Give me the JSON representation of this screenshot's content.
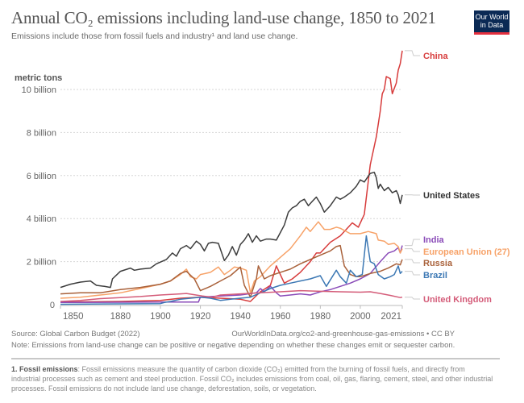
{
  "header": {
    "title": "Annual CO₂ emissions including land-use change, 1850 to 2021",
    "subtitle": "Emissions include those from fossil fuels and industry¹ and land use change.",
    "logo_line1": "Our World",
    "logo_line2": "in Data"
  },
  "footer": {
    "source": "Source: Global Carbon Budget (2022)",
    "url": "OurWorldInData.org/co2-and-greenhouse-gas-emissions • CC BY",
    "note": "Note: Emissions from land-use change can be positive or negative depending on whether these changes emit or sequester carbon.",
    "footnote_label": "1. Fossil emissions",
    "footnote_text": ": Fossil emissions measure the quantity of carbon dioxide (CO₂) emitted from the burning of fossil fuels, and directly from industrial processes such as cement and steel production. Fossil CO₂ includes emissions from coal, oil, gas, flaring, cement, steel, and other industrial processes. Fossil emissions do not include land use change, deforestation, soils, or vegetation."
  },
  "chart_data": {
    "type": "line",
    "title": "Annual CO₂ emissions including land-use change, 1850 to 2021",
    "ylabel": "metric tons",
    "xlabel": "",
    "xlim": [
      1850,
      2021
    ],
    "ylim": [
      0,
      10000000000
    ],
    "grid": true,
    "legend": "right (line-end labels)",
    "x_ticks": [
      1850,
      1880,
      1900,
      1920,
      1940,
      1960,
      1980,
      2000,
      2021
    ],
    "y_ticks": [
      {
        "value": 0,
        "label": "0"
      },
      {
        "value": 2000000000,
        "label": "2 billion"
      },
      {
        "value": 4000000000,
        "label": "4 billion"
      },
      {
        "value": 6000000000,
        "label": "6 billion"
      },
      {
        "value": 8000000000,
        "label": "8 billion"
      },
      {
        "value": 10000000000,
        "label": "10 billion"
      }
    ],
    "unit_note": "values in billions of metric tons",
    "series": [
      {
        "name": "China",
        "color": "#d73c3c",
        "points": [
          [
            1850,
            0.12
          ],
          [
            1880,
            0.15
          ],
          [
            1900,
            0.2
          ],
          [
            1910,
            0.3
          ],
          [
            1920,
            0.35
          ],
          [
            1930,
            0.3
          ],
          [
            1940,
            0.25
          ],
          [
            1945,
            0.15
          ],
          [
            1950,
            0.6
          ],
          [
            1955,
            0.9
          ],
          [
            1958,
            1.8
          ],
          [
            1960,
            1.4
          ],
          [
            1962,
            1.0
          ],
          [
            1966,
            1.2
          ],
          [
            1970,
            1.5
          ],
          [
            1975,
            2.0
          ],
          [
            1978,
            2.4
          ],
          [
            1980,
            2.4
          ],
          [
            1985,
            2.9
          ],
          [
            1990,
            3.2
          ],
          [
            1996,
            3.8
          ],
          [
            1999,
            3.6
          ],
          [
            2002,
            4.2
          ],
          [
            2005,
            6.5
          ],
          [
            2008,
            7.8
          ],
          [
            2010,
            9.0
          ],
          [
            2011,
            9.8
          ],
          [
            2012,
            10.0
          ],
          [
            2013,
            10.6
          ],
          [
            2015,
            10.5
          ],
          [
            2016,
            9.8
          ],
          [
            2018,
            10.3
          ],
          [
            2019,
            10.9
          ],
          [
            2020,
            11.2
          ],
          [
            2021,
            11.8
          ]
        ]
      },
      {
        "name": "United States",
        "color": "#3d3d3d",
        "points": [
          [
            1850,
            0.8
          ],
          [
            1855,
            0.95
          ],
          [
            1860,
            1.05
          ],
          [
            1865,
            1.1
          ],
          [
            1868,
            0.9
          ],
          [
            1872,
            0.85
          ],
          [
            1875,
            0.8
          ],
          [
            1876,
            1.2
          ],
          [
            1880,
            1.55
          ],
          [
            1885,
            1.7
          ],
          [
            1887,
            1.6
          ],
          [
            1890,
            1.65
          ],
          [
            1895,
            1.7
          ],
          [
            1898,
            1.9
          ],
          [
            1903,
            2.1
          ],
          [
            1906,
            2.4
          ],
          [
            1908,
            2.25
          ],
          [
            1910,
            2.6
          ],
          [
            1913,
            2.75
          ],
          [
            1915,
            2.6
          ],
          [
            1918,
            2.95
          ],
          [
            1920,
            2.8
          ],
          [
            1922,
            2.5
          ],
          [
            1924,
            2.85
          ],
          [
            1926,
            2.9
          ],
          [
            1929,
            2.85
          ],
          [
            1932,
            2.05
          ],
          [
            1934,
            2.3
          ],
          [
            1936,
            2.7
          ],
          [
            1938,
            2.3
          ],
          [
            1940,
            2.8
          ],
          [
            1942,
            3.0
          ],
          [
            1944,
            3.3
          ],
          [
            1946,
            2.9
          ],
          [
            1948,
            3.2
          ],
          [
            1950,
            2.95
          ],
          [
            1953,
            3.05
          ],
          [
            1955,
            3.05
          ],
          [
            1958,
            3.0
          ],
          [
            1960,
            3.35
          ],
          [
            1962,
            3.7
          ],
          [
            1964,
            4.3
          ],
          [
            1966,
            4.5
          ],
          [
            1968,
            4.6
          ],
          [
            1970,
            4.8
          ],
          [
            1972,
            4.9
          ],
          [
            1974,
            4.6
          ],
          [
            1976,
            4.8
          ],
          [
            1978,
            5.0
          ],
          [
            1980,
            4.7
          ],
          [
            1982,
            4.3
          ],
          [
            1985,
            4.6
          ],
          [
            1988,
            5.0
          ],
          [
            1990,
            4.9
          ],
          [
            1992,
            5.0
          ],
          [
            1995,
            5.2
          ],
          [
            1998,
            5.5
          ],
          [
            2000,
            5.8
          ],
          [
            2002,
            5.7
          ],
          [
            2005,
            6.1
          ],
          [
            2007,
            6.15
          ],
          [
            2008,
            5.9
          ],
          [
            2009,
            5.4
          ],
          [
            2010,
            5.6
          ],
          [
            2012,
            5.3
          ],
          [
            2014,
            5.45
          ],
          [
            2016,
            5.2
          ],
          [
            2018,
            5.3
          ],
          [
            2019,
            5.1
          ],
          [
            2020,
            4.7
          ],
          [
            2021,
            5.1
          ]
        ]
      },
      {
        "name": "India",
        "color": "#8a4bb8",
        "points": [
          [
            1850,
            0.1
          ],
          [
            1900,
            0.12
          ],
          [
            1919,
            0.12
          ],
          [
            1920,
            0.35
          ],
          [
            1930,
            0.4
          ],
          [
            1940,
            0.45
          ],
          [
            1948,
            0.55
          ],
          [
            1950,
            0.75
          ],
          [
            1952,
            0.6
          ],
          [
            1955,
            0.85
          ],
          [
            1958,
            0.55
          ],
          [
            1960,
            0.4
          ],
          [
            1965,
            0.45
          ],
          [
            1970,
            0.5
          ],
          [
            1975,
            0.45
          ],
          [
            1980,
            0.6
          ],
          [
            1985,
            0.7
          ],
          [
            1990,
            0.85
          ],
          [
            1995,
            1.0
          ],
          [
            2000,
            1.2
          ],
          [
            2005,
            1.45
          ],
          [
            2010,
            2.0
          ],
          [
            2014,
            2.4
          ],
          [
            2017,
            2.5
          ],
          [
            2019,
            2.65
          ],
          [
            2020,
            2.4
          ],
          [
            2021,
            2.75
          ]
        ]
      },
      {
        "name": "European Union (27)",
        "color": "#f7a268",
        "points": [
          [
            1850,
            0.3
          ],
          [
            1860,
            0.35
          ],
          [
            1870,
            0.45
          ],
          [
            1880,
            0.55
          ],
          [
            1890,
            0.75
          ],
          [
            1900,
            0.95
          ],
          [
            1905,
            1.1
          ],
          [
            1910,
            1.4
          ],
          [
            1913,
            1.65
          ],
          [
            1915,
            1.3
          ],
          [
            1918,
            1.2
          ],
          [
            1920,
            1.4
          ],
          [
            1925,
            1.5
          ],
          [
            1929,
            1.75
          ],
          [
            1932,
            1.4
          ],
          [
            1935,
            1.6
          ],
          [
            1937,
            1.75
          ],
          [
            1940,
            1.7
          ],
          [
            1943,
            1.6
          ],
          [
            1945,
            0.55
          ],
          [
            1947,
            1.1
          ],
          [
            1950,
            1.3
          ],
          [
            1955,
            1.8
          ],
          [
            1960,
            2.2
          ],
          [
            1965,
            2.6
          ],
          [
            1970,
            3.2
          ],
          [
            1973,
            3.6
          ],
          [
            1975,
            3.4
          ],
          [
            1979,
            3.85
          ],
          [
            1982,
            3.5
          ],
          [
            1985,
            3.5
          ],
          [
            1988,
            3.6
          ],
          [
            1990,
            3.55
          ],
          [
            1995,
            3.3
          ],
          [
            2000,
            3.3
          ],
          [
            2004,
            3.4
          ],
          [
            2008,
            3.3
          ],
          [
            2009,
            3.0
          ],
          [
            2012,
            2.95
          ],
          [
            2014,
            2.8
          ],
          [
            2017,
            2.85
          ],
          [
            2019,
            2.7
          ],
          [
            2020,
            2.4
          ],
          [
            2021,
            2.6
          ]
        ]
      },
      {
        "name": "Russia",
        "color": "#a9613a",
        "points": [
          [
            1850,
            0.5
          ],
          [
            1860,
            0.55
          ],
          [
            1870,
            0.55
          ],
          [
            1880,
            0.7
          ],
          [
            1890,
            0.8
          ],
          [
            1900,
            0.95
          ],
          [
            1905,
            1.1
          ],
          [
            1910,
            1.45
          ],
          [
            1913,
            1.55
          ],
          [
            1917,
            1.2
          ],
          [
            1920,
            0.65
          ],
          [
            1925,
            0.85
          ],
          [
            1930,
            1.1
          ],
          [
            1935,
            1.35
          ],
          [
            1940,
            1.75
          ],
          [
            1942,
            0.9
          ],
          [
            1945,
            0.35
          ],
          [
            1948,
            1.2
          ],
          [
            1949,
            1.8
          ],
          [
            1952,
            1.2
          ],
          [
            1955,
            1.35
          ],
          [
            1960,
            1.5
          ],
          [
            1965,
            1.65
          ],
          [
            1970,
            1.9
          ],
          [
            1975,
            2.1
          ],
          [
            1980,
            2.3
          ],
          [
            1985,
            2.5
          ],
          [
            1988,
            2.7
          ],
          [
            1990,
            2.75
          ],
          [
            1992,
            1.8
          ],
          [
            1995,
            1.4
          ],
          [
            1998,
            1.3
          ],
          [
            2000,
            1.3
          ],
          [
            2005,
            1.45
          ],
          [
            2010,
            1.55
          ],
          [
            2014,
            1.7
          ],
          [
            2018,
            1.9
          ],
          [
            2020,
            1.85
          ],
          [
            2021,
            2.1
          ]
        ]
      },
      {
        "name": "Brazil",
        "color": "#3c78b4",
        "points": [
          [
            1850,
            0.02
          ],
          [
            1900,
            0.05
          ],
          [
            1902,
            0.1
          ],
          [
            1905,
            0.15
          ],
          [
            1910,
            0.25
          ],
          [
            1915,
            0.3
          ],
          [
            1920,
            0.35
          ],
          [
            1925,
            0.3
          ],
          [
            1930,
            0.2
          ],
          [
            1935,
            0.25
          ],
          [
            1940,
            0.3
          ],
          [
            1945,
            0.35
          ],
          [
            1950,
            0.55
          ],
          [
            1955,
            0.75
          ],
          [
            1960,
            0.9
          ],
          [
            1965,
            1.0
          ],
          [
            1970,
            1.1
          ],
          [
            1975,
            1.2
          ],
          [
            1980,
            1.35
          ],
          [
            1983,
            0.85
          ],
          [
            1985,
            1.15
          ],
          [
            1988,
            1.6
          ],
          [
            1990,
            1.3
          ],
          [
            1993,
            1.0
          ],
          [
            1995,
            1.6
          ],
          [
            1998,
            1.3
          ],
          [
            2001,
            1.4
          ],
          [
            2003,
            3.2
          ],
          [
            2005,
            2.0
          ],
          [
            2007,
            1.9
          ],
          [
            2009,
            1.4
          ],
          [
            2012,
            1.2
          ],
          [
            2015,
            1.3
          ],
          [
            2017,
            1.4
          ],
          [
            2019,
            1.8
          ],
          [
            2020,
            1.45
          ],
          [
            2021,
            1.55
          ]
        ]
      },
      {
        "name": "United Kingdom",
        "color": "#d45c79",
        "points": [
          [
            1850,
            0.15
          ],
          [
            1860,
            0.2
          ],
          [
            1870,
            0.28
          ],
          [
            1880,
            0.33
          ],
          [
            1890,
            0.38
          ],
          [
            1900,
            0.45
          ],
          [
            1910,
            0.5
          ],
          [
            1913,
            0.52
          ],
          [
            1921,
            0.4
          ],
          [
            1926,
            0.35
          ],
          [
            1930,
            0.45
          ],
          [
            1940,
            0.5
          ],
          [
            1950,
            0.55
          ],
          [
            1960,
            0.6
          ],
          [
            1970,
            0.65
          ],
          [
            1980,
            0.62
          ],
          [
            1990,
            0.6
          ],
          [
            2000,
            0.58
          ],
          [
            2005,
            0.6
          ],
          [
            2010,
            0.52
          ],
          [
            2015,
            0.43
          ],
          [
            2020,
            0.33
          ],
          [
            2021,
            0.35
          ]
        ]
      }
    ]
  }
}
